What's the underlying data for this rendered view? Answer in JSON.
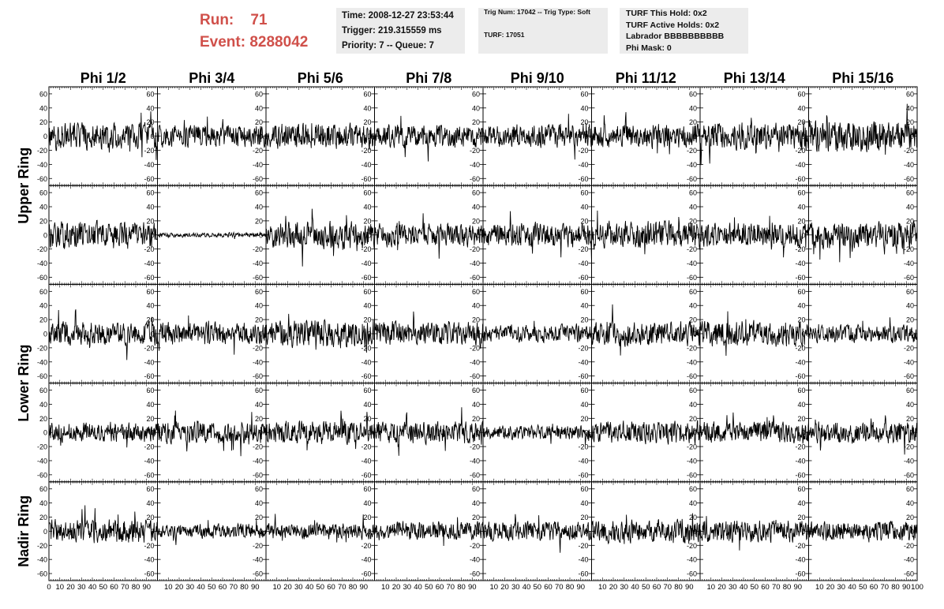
{
  "header": {
    "run_label": "Run:",
    "run_value": "71",
    "event_label": "Event:",
    "event_value": "8288042",
    "time_line": "Time: 2008-12-27 23:53:44",
    "trigger_line": "Trigger: 219.315559 ms",
    "priority_line": "Priority: 7 -- Queue: 7",
    "trig_line": "Trig Num: 17042 -- Trig Type: Soft",
    "turf_line": "TURF: 17051",
    "turf_hold_line": "TURF This Hold: 0x2",
    "turf_active_line": "TURF Active Holds: 0x2",
    "labrador_line": "Labrador BBBBBBBBBB",
    "phi_mask_line": "Phi Mask: 0"
  },
  "colors": {
    "run_event": "#d0504a",
    "panel_bg": "#ececec",
    "trace": "#000000"
  },
  "chart_data": {
    "type": "line",
    "columns": [
      "Phi 1/2",
      "Phi 3/4",
      "Phi 5/6",
      "Phi 7/8",
      "Phi 9/10",
      "Phi 11/12",
      "Phi 13/14",
      "Phi 15/16"
    ],
    "ring_labels": [
      "Upper Ring",
      "Lower Ring",
      "Nadir Ring"
    ],
    "rows": 5,
    "xlim": [
      0,
      100
    ],
    "ylim": [
      -70,
      70
    ],
    "yticks": [
      -60,
      -40,
      -20,
      0,
      20,
      40,
      60
    ],
    "yticks_nadir": [
      -60,
      -40,
      -20,
      0,
      20,
      40,
      60
    ],
    "xtick_labels": [
      "0",
      "10",
      "20",
      "30",
      "40",
      "50",
      "60",
      "70",
      "80",
      "90",
      "100"
    ],
    "samples_per_trace": 260,
    "trace_amplitude": [
      [
        17,
        14,
        16,
        14,
        15,
        15,
        17,
        20
      ],
      [
        17,
        3,
        17,
        15,
        15,
        17,
        15,
        17
      ],
      [
        15,
        14,
        18,
        15,
        11,
        15,
        16,
        11
      ],
      [
        12,
        14,
        14,
        14,
        9,
        14,
        13,
        14
      ],
      [
        15,
        9,
        10,
        12,
        12,
        14,
        14,
        12
      ]
    ],
    "trace_seed": [
      [
        11,
        23,
        37,
        41,
        53,
        67,
        71,
        83
      ],
      [
        97,
        101,
        113,
        127,
        131,
        137,
        149,
        151
      ],
      [
        163,
        173,
        181,
        191,
        193,
        197,
        211,
        223
      ],
      [
        227,
        229,
        233,
        239,
        241,
        251,
        257,
        263
      ],
      [
        269,
        271,
        277,
        281,
        283,
        293,
        307,
        311
      ]
    ]
  }
}
